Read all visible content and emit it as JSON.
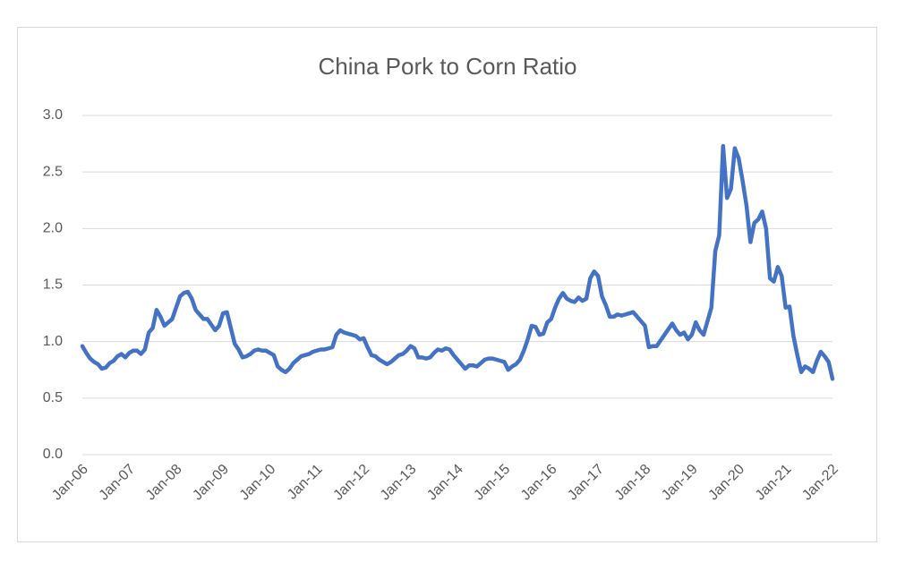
{
  "chart_data": {
    "type": "line",
    "title": "China Pork to Corn Ratio",
    "categories": [
      "Jan-06",
      null,
      null,
      null,
      null,
      null,
      null,
      null,
      null,
      null,
      null,
      null,
      "Jan-07",
      null,
      null,
      null,
      null,
      null,
      null,
      null,
      null,
      null,
      null,
      null,
      "Jan-08",
      null,
      null,
      null,
      null,
      null,
      null,
      null,
      null,
      null,
      null,
      null,
      "Jan-09",
      null,
      null,
      null,
      null,
      null,
      null,
      null,
      null,
      null,
      null,
      null,
      "Jan-10",
      null,
      null,
      null,
      null,
      null,
      null,
      null,
      null,
      null,
      null,
      null,
      "Jan-11",
      null,
      null,
      null,
      null,
      null,
      null,
      null,
      null,
      null,
      null,
      null,
      "Jan-12",
      null,
      null,
      null,
      null,
      null,
      null,
      null,
      null,
      null,
      null,
      null,
      "Jan-13",
      null,
      null,
      null,
      null,
      null,
      null,
      null,
      null,
      null,
      null,
      null,
      "Jan-14",
      null,
      null,
      null,
      null,
      null,
      null,
      null,
      null,
      null,
      null,
      null,
      "Jan-15",
      null,
      null,
      null,
      null,
      null,
      null,
      null,
      null,
      null,
      null,
      null,
      "Jan-16",
      null,
      null,
      null,
      null,
      null,
      null,
      null,
      null,
      null,
      null,
      null,
      "Jan-17",
      null,
      null,
      null,
      null,
      null,
      null,
      null,
      null,
      null,
      null,
      null,
      "Jan-18",
      null,
      null,
      null,
      null,
      null,
      null,
      null,
      null,
      null,
      null,
      null,
      "Jan-19",
      null,
      null,
      null,
      null,
      null,
      null,
      null,
      null,
      null,
      null,
      null,
      "Jan-20",
      null,
      null,
      null,
      null,
      null,
      null,
      null,
      null,
      null,
      null,
      null,
      "Jan-21",
      null,
      null,
      null,
      null,
      null,
      null,
      null,
      null,
      null,
      null,
      null,
      "Jan-22"
    ],
    "values": [
      0.96,
      0.9,
      0.85,
      0.82,
      0.8,
      0.76,
      0.77,
      0.81,
      0.83,
      0.87,
      0.89,
      0.86,
      0.9,
      0.92,
      0.92,
      0.89,
      0.93,
      1.08,
      1.12,
      1.28,
      1.22,
      1.14,
      1.17,
      1.2,
      1.3,
      1.4,
      1.43,
      1.44,
      1.38,
      1.28,
      1.24,
      1.2,
      1.2,
      1.15,
      1.1,
      1.14,
      1.25,
      1.26,
      1.12,
      0.98,
      0.93,
      0.86,
      0.87,
      0.89,
      0.92,
      0.93,
      0.92,
      0.92,
      0.9,
      0.88,
      0.78,
      0.75,
      0.73,
      0.76,
      0.81,
      0.84,
      0.87,
      0.88,
      0.89,
      0.91,
      0.92,
      0.93,
      0.93,
      0.94,
      0.95,
      1.06,
      1.1,
      1.08,
      1.07,
      1.06,
      1.05,
      1.02,
      1.03,
      0.95,
      0.88,
      0.87,
      0.84,
      0.82,
      0.8,
      0.82,
      0.85,
      0.88,
      0.89,
      0.92,
      0.96,
      0.94,
      0.86,
      0.86,
      0.85,
      0.86,
      0.9,
      0.93,
      0.92,
      0.94,
      0.93,
      0.88,
      0.84,
      0.8,
      0.76,
      0.79,
      0.79,
      0.78,
      0.81,
      0.84,
      0.85,
      0.85,
      0.84,
      0.83,
      0.82,
      0.75,
      0.78,
      0.8,
      0.84,
      0.92,
      1.02,
      1.14,
      1.13,
      1.06,
      1.07,
      1.17,
      1.2,
      1.3,
      1.38,
      1.43,
      1.38,
      1.36,
      1.35,
      1.39,
      1.36,
      1.38,
      1.56,
      1.62,
      1.58,
      1.4,
      1.32,
      1.22,
      1.22,
      1.24,
      1.23,
      1.24,
      1.25,
      1.26,
      1.22,
      1.18,
      1.14,
      0.95,
      0.96,
      0.96,
      1.01,
      1.06,
      1.11,
      1.16,
      1.1,
      1.06,
      1.08,
      1.02,
      1.06,
      1.17,
      1.1,
      1.06,
      1.18,
      1.3,
      1.8,
      1.94,
      2.73,
      2.27,
      2.35,
      2.71,
      2.62,
      2.42,
      2.2,
      1.88,
      2.05,
      2.08,
      2.15,
      2.0,
      1.56,
      1.53,
      1.66,
      1.58,
      1.3,
      1.31,
      1.05,
      0.88,
      0.73,
      0.78,
      0.76,
      0.73,
      0.83,
      0.91,
      0.87,
      0.82,
      0.67
    ],
    "color": "#4472c4",
    "ylim": [
      0,
      3
    ],
    "yticks": [
      {
        "value": 0,
        "label": "0.0"
      },
      0.5,
      {
        "value": 1,
        "label": "1.0"
      },
      1.5,
      {
        "value": 2,
        "label": "2.0"
      },
      2.5,
      {
        "value": 3,
        "label": "3.0"
      }
    ],
    "grid": true
  }
}
